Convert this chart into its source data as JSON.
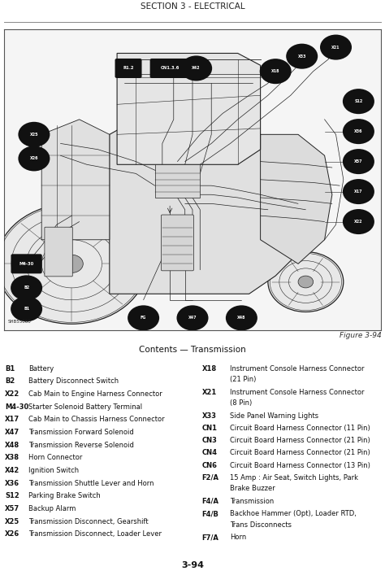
{
  "page_title": "SECTION 3 - ELECTRICAL",
  "figure_label": "Figure 3-94",
  "diagram_caption": "Contents — Transmission",
  "page_number": "3-94",
  "bg_color": "#ffffff",
  "diagram_bg": "#f0f0f0",
  "bubble_color": "#111111",
  "bubble_text_color": "#ffffff",
  "line_color": "#222222",
  "shb_label": "SHB55060",
  "bubble_labels": [
    [
      88,
      94,
      "X21"
    ],
    [
      79,
      91,
      "X33"
    ],
    [
      72,
      86,
      "X18"
    ],
    [
      44,
      87,
      "CN1.3.6"
    ],
    [
      33,
      87,
      "R1.2"
    ],
    [
      51,
      87,
      "X42"
    ],
    [
      8,
      65,
      "X25"
    ],
    [
      8,
      57,
      "X26"
    ],
    [
      6,
      22,
      "M4-30"
    ],
    [
      6,
      14,
      "B2"
    ],
    [
      6,
      7,
      "B1"
    ],
    [
      37,
      4,
      "FG"
    ],
    [
      50,
      4,
      "X47"
    ],
    [
      63,
      4,
      "X48"
    ],
    [
      94,
      76,
      "S12"
    ],
    [
      94,
      66,
      "X36"
    ],
    [
      94,
      56,
      "X57"
    ],
    [
      94,
      46,
      "X17"
    ],
    [
      94,
      36,
      "X22"
    ]
  ],
  "left_entries": [
    [
      "B1",
      "Battery"
    ],
    [
      "B2",
      "Battery Disconnect Switch"
    ],
    [
      "X22",
      "Cab Main to Engine Harness Connector"
    ],
    [
      "M4-30",
      "Starter Solenoid Battery Terminal"
    ],
    [
      "X17",
      "Cab Main to Chassis Harness Connector"
    ],
    [
      "X47",
      "Transmission Forward Solenoid"
    ],
    [
      "X48",
      "Transmission Reverse Solenoid"
    ],
    [
      "X38",
      "Horn Connector"
    ],
    [
      "X42",
      "Ignition Switch"
    ],
    [
      "X36",
      "Transmission Shuttle Lever and Horn"
    ],
    [
      "S12",
      "Parking Brake Switch"
    ],
    [
      "X57",
      "Backup Alarm"
    ],
    [
      "X25",
      "Transmission Disconnect, Gearshift"
    ],
    [
      "X26",
      "Transmission Disconnect, Loader Lever"
    ]
  ],
  "right_entries": [
    [
      "X18",
      "Instrument Console Harness Connector\n(21 Pin)"
    ],
    [
      "X21",
      "Instrument Console Harness Connector\n(8 Pin)"
    ],
    [
      "X33",
      "Side Panel Warning Lights"
    ],
    [
      "CN1",
      "Circuit Board Harness Connector (11 Pin)"
    ],
    [
      "CN3",
      "Circuit Board Harness Connector (21 Pin)"
    ],
    [
      "CN4",
      "Circuit Board Harness Connector (21 Pin)"
    ],
    [
      "CN6",
      "Circuit Board Harness Connector (13 Pin)"
    ],
    [
      "F2/A",
      "15 Amp : Air Seat, Switch Lights, Park\nBrake Buzzer"
    ],
    [
      "F4/A",
      "Transmission"
    ],
    [
      "F4/B",
      "Backhoe Hammer (Opt), Loader RTD,\nTrans Disconnects"
    ],
    [
      "F7/A",
      "Horn"
    ]
  ]
}
